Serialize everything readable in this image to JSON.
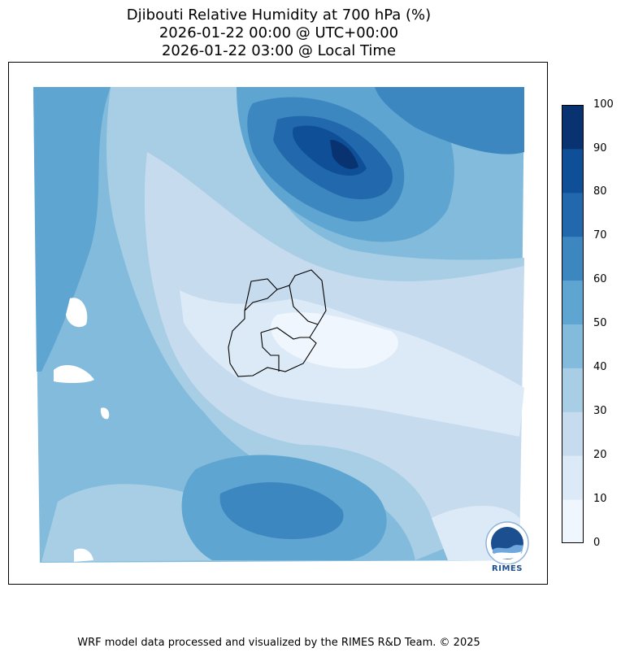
{
  "title": {
    "line1": "Djibouti Relative Humidity at 700 hPa (%)",
    "line2": "2026-01-22 00:00 @ UTC+00:00",
    "line3": "2026-01-22 03:00 @ Local Time"
  },
  "colorbar": {
    "ticks": [
      "0",
      "10",
      "20",
      "30",
      "40",
      "50",
      "60",
      "70",
      "80",
      "90",
      "100"
    ],
    "colors": [
      "#f0f6fd",
      "#dce9f6",
      "#c7dbef",
      "#a7cee4",
      "#82bbdb",
      "#5ea5d2",
      "#3d87c0",
      "#2268ad",
      "#0e4f98",
      "#083370"
    ]
  },
  "logo": {
    "text": "RIMES"
  },
  "footer": "WRF model data processed and visualized by the RIMES R&D Team. © 2025"
}
